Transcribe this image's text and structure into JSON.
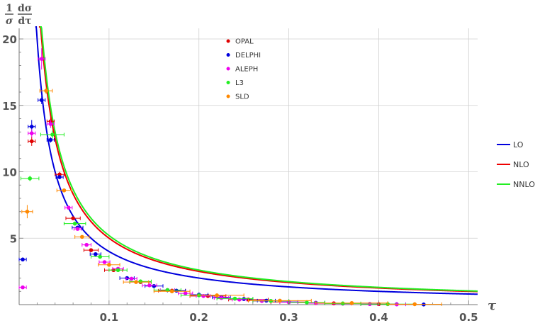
{
  "chart_data": {
    "type": "scatter",
    "title": "",
    "xlabel": "τ",
    "ylabel": {
      "numerator_left": "1",
      "denominator_left": "σ",
      "numerator_right": "dσ",
      "denominator_right": "dτ"
    },
    "xlim": [
      0,
      0.51
    ],
    "ylim": [
      0,
      20.8
    ],
    "xticks": [
      "0.1",
      "0.2",
      "0.3",
      "0.4",
      "0.5"
    ],
    "xtick_values": [
      0.1,
      0.2,
      0.3,
      0.4,
      0.5
    ],
    "yticks": [
      "5",
      "10",
      "15",
      "20"
    ],
    "ytick_values": [
      5,
      10,
      15,
      20
    ],
    "grid": true,
    "data_series": [
      {
        "name": "OPAL",
        "color": "#e00000",
        "points": [
          [
            0.014,
            12.3,
            0.004,
            0.35
          ],
          [
            0.035,
            13.8,
            0.004,
            0.3
          ],
          [
            0.045,
            9.8,
            0.005,
            0.2
          ],
          [
            0.06,
            6.5,
            0.008,
            0.12
          ],
          [
            0.08,
            4.1,
            0.008,
            0.1
          ],
          [
            0.105,
            2.6,
            0.01,
            0.08
          ],
          [
            0.135,
            1.7,
            0.012,
            0.05
          ],
          [
            0.17,
            1.05,
            0.015,
            0.04
          ],
          [
            0.21,
            0.65,
            0.02,
            0.03
          ],
          [
            0.255,
            0.38,
            0.022,
            0.02
          ],
          [
            0.3,
            0.2,
            0.02,
            0.02
          ],
          [
            0.35,
            0.1,
            0.02,
            0.02
          ],
          [
            0.4,
            0.04,
            0.02,
            0.02
          ]
        ]
      },
      {
        "name": "DELPHI",
        "color": "#0000dd",
        "points": [
          [
            0.004,
            3.4,
            0.004,
            0.15
          ],
          [
            0.014,
            13.4,
            0.004,
            0.5
          ],
          [
            0.025,
            15.4,
            0.004,
            0.3
          ],
          [
            0.035,
            12.4,
            0.004,
            0.2
          ],
          [
            0.045,
            9.6,
            0.004,
            0.15
          ],
          [
            0.065,
            5.8,
            0.006,
            0.1
          ],
          [
            0.085,
            3.8,
            0.006,
            0.08
          ],
          [
            0.12,
            2.0,
            0.008,
            0.05
          ],
          [
            0.15,
            1.4,
            0.01,
            0.04
          ],
          [
            0.175,
            1.05,
            0.01,
            0.03
          ],
          [
            0.2,
            0.75,
            0.01,
            0.03
          ],
          [
            0.225,
            0.55,
            0.01,
            0.02
          ],
          [
            0.25,
            0.42,
            0.01,
            0.02
          ],
          [
            0.275,
            0.3,
            0.01,
            0.02
          ],
          [
            0.3,
            0.2,
            0.01,
            0.02
          ],
          [
            0.33,
            0.14,
            0.01,
            0.02
          ],
          [
            0.36,
            0.08,
            0.01,
            0.02
          ],
          [
            0.39,
            0.05,
            0.01,
            0.02
          ],
          [
            0.42,
            0.03,
            0.01,
            0.02
          ],
          [
            0.45,
            0.01,
            0.0,
            0.0
          ]
        ]
      },
      {
        "name": "ALEPH",
        "color": "#ee00ee",
        "points": [
          [
            0.004,
            1.3,
            0.004,
            0.1
          ],
          [
            0.014,
            12.9,
            0.004,
            0.3
          ],
          [
            0.025,
            18.5,
            0.004,
            0.8
          ],
          [
            0.035,
            13.6,
            0.004,
            0.3
          ],
          [
            0.055,
            7.3,
            0.004,
            0.15
          ],
          [
            0.065,
            5.7,
            0.004,
            0.1
          ],
          [
            0.075,
            4.5,
            0.005,
            0.1
          ],
          [
            0.095,
            3.2,
            0.006,
            0.08
          ],
          [
            0.11,
            2.7,
            0.006,
            0.06
          ],
          [
            0.125,
            1.95,
            0.006,
            0.05
          ],
          [
            0.145,
            1.45,
            0.008,
            0.04
          ],
          [
            0.165,
            1.1,
            0.008,
            0.03
          ],
          [
            0.185,
            0.85,
            0.008,
            0.03
          ],
          [
            0.205,
            0.65,
            0.008,
            0.02
          ],
          [
            0.225,
            0.5,
            0.008,
            0.02
          ],
          [
            0.245,
            0.38,
            0.008,
            0.02
          ],
          [
            0.27,
            0.27,
            0.01,
            0.02
          ],
          [
            0.3,
            0.18,
            0.01,
            0.02
          ],
          [
            0.33,
            0.11,
            0.01,
            0.02
          ],
          [
            0.36,
            0.07,
            0.01,
            0.02
          ],
          [
            0.39,
            0.04,
            0.01,
            0.02
          ],
          [
            0.42,
            0.02,
            0.01,
            0.02
          ]
        ]
      },
      {
        "name": "L3",
        "color": "#22ee22",
        "points": [
          [
            0.012,
            9.5,
            0.01,
            0.2
          ],
          [
            0.037,
            12.8,
            0.013,
            0.3
          ],
          [
            0.062,
            6.1,
            0.012,
            0.15
          ],
          [
            0.09,
            3.6,
            0.01,
            0.1
          ],
          [
            0.11,
            2.6,
            0.01,
            0.08
          ],
          [
            0.135,
            1.75,
            0.012,
            0.05
          ],
          [
            0.165,
            1.1,
            0.015,
            0.04
          ],
          [
            0.2,
            0.7,
            0.02,
            0.03
          ],
          [
            0.24,
            0.45,
            0.02,
            0.02
          ],
          [
            0.28,
            0.28,
            0.02,
            0.02
          ],
          [
            0.32,
            0.16,
            0.02,
            0.02
          ],
          [
            0.36,
            0.09,
            0.02,
            0.02
          ],
          [
            0.41,
            0.04,
            0.03,
            0.02
          ]
        ]
      },
      {
        "name": "SLD",
        "color": "#ff8800",
        "points": [
          [
            0.009,
            7.0,
            0.006,
            0.5
          ],
          [
            0.03,
            16.1,
            0.007,
            0.25
          ],
          [
            0.05,
            8.6,
            0.008,
            0.15
          ],
          [
            0.07,
            5.1,
            0.008,
            0.12
          ],
          [
            0.1,
            3.0,
            0.012,
            0.1
          ],
          [
            0.13,
            1.7,
            0.014,
            0.06
          ],
          [
            0.17,
            1.0,
            0.02,
            0.04
          ],
          [
            0.22,
            0.7,
            0.03,
            0.03
          ],
          [
            0.29,
            0.3,
            0.035,
            0.02
          ],
          [
            0.37,
            0.12,
            0.04,
            0.02
          ],
          [
            0.44,
            0.03,
            0.03,
            0.02
          ]
        ]
      }
    ],
    "curves": [
      {
        "name": "LO",
        "color": "#0000dd",
        "coefficient": 0.4
      },
      {
        "name": "NLO",
        "color": "#ee0000",
        "coefficient": 0.5
      },
      {
        "name": "NNLO",
        "color": "#22ee22",
        "coefficient": 0.52
      }
    ],
    "legend_placement": [
      "top-center",
      "right"
    ]
  }
}
